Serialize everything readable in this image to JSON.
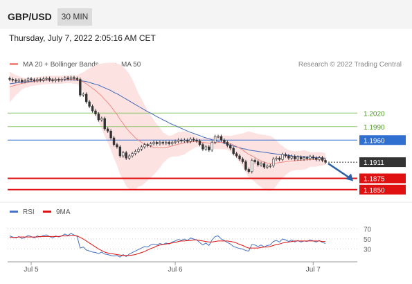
{
  "header": {
    "pair": "GBP/USD",
    "timeframe": "30 MIN"
  },
  "timestamp": "Thursday, July 7, 2022 2:05:16 AM CET",
  "colors": {
    "ma20": "#f08c84",
    "ma50": "#3f67b8",
    "band_fill": "#fde2e2",
    "support": "#e01010",
    "resistance": "#8cc56a",
    "pivot": "#2f6fd0",
    "last": "#333333",
    "rsi": "#4472c4",
    "rsi_ma": "#e01010",
    "candle": "#333333",
    "arrow": "#2b5fa5"
  },
  "chart_data": [
    {
      "type": "candlestick",
      "title": "GBP/USD",
      "legend": [
        "MA 20 + Bollinger Bands",
        "MA 50"
      ],
      "legend_placement": "top-left",
      "credit": "Research © 2022 Trading Central",
      "x_tick_labels": [
        "Jul 5",
        "Jul 6",
        "Jul 7"
      ],
      "ylim": [
        1.1825,
        1.2105
      ],
      "levels": [
        {
          "label": "1.2020",
          "value": 1.202,
          "kind": "resistance"
        },
        {
          "label": "1.1990",
          "value": 1.199,
          "kind": "resistance"
        },
        {
          "label": "1.1960",
          "value": 1.196,
          "kind": "pivot"
        },
        {
          "label": "1.1911",
          "value": 1.1911,
          "kind": "last"
        },
        {
          "label": "1.1875",
          "value": 1.1875,
          "kind": "support"
        },
        {
          "label": "1.1850",
          "value": 1.185,
          "kind": "support"
        }
      ],
      "close": [
        1.2095,
        1.2093,
        1.2091,
        1.2093,
        1.209,
        1.2092,
        1.2096,
        1.2094,
        1.2092,
        1.2095,
        1.2093,
        1.2096,
        1.2097,
        1.2094,
        1.2092,
        1.2095,
        1.2093,
        1.2095,
        1.2098,
        1.2096,
        1.2099,
        1.2097,
        1.2095,
        1.206,
        1.2062,
        1.2045,
        1.2035,
        1.2025,
        1.2018,
        1.2005,
        1.2008,
        1.1985,
        1.198,
        1.1965,
        1.195,
        1.1945,
        1.1925,
        1.1932,
        1.192,
        1.1925,
        1.193,
        1.1935,
        1.194,
        1.1945,
        1.195,
        1.1948,
        1.1952,
        1.1955,
        1.1952,
        1.1955,
        1.1953,
        1.1955,
        1.1952,
        1.1955,
        1.1957,
        1.196,
        1.1958,
        1.196,
        1.1957,
        1.1962,
        1.196,
        1.1958,
        1.195,
        1.194,
        1.1945,
        1.1938,
        1.1955,
        1.1968,
        1.1968,
        1.196,
        1.1955,
        1.1948,
        1.1942,
        1.193,
        1.1925,
        1.1918,
        1.1912,
        1.1895,
        1.189,
        1.1915,
        1.1912,
        1.1905,
        1.1908,
        1.19,
        1.1902,
        1.1903,
        1.1918,
        1.192,
        1.1917,
        1.1928,
        1.1925,
        1.192,
        1.1924,
        1.1918,
        1.1922,
        1.1918,
        1.1921,
        1.1919,
        1.1923,
        1.192,
        1.1917,
        1.1921,
        1.1915,
        1.1911
      ],
      "ma20": [
        1.2078,
        1.208,
        1.2082,
        1.2084,
        1.2086,
        1.2087,
        1.2088,
        1.2089,
        1.209,
        1.2091,
        1.2092,
        1.2093,
        1.2093,
        1.2094,
        1.2094,
        1.2094,
        1.2094,
        1.2094,
        1.2095,
        1.2095,
        1.2095,
        1.2094,
        1.2094,
        1.2092,
        1.2089,
        1.2085,
        1.208,
        1.2075,
        1.207,
        1.2064,
        1.2058,
        1.205,
        1.2043,
        1.2035,
        1.2026,
        1.2017,
        1.2006,
        1.1997,
        1.1987,
        1.1979,
        1.1972,
        1.1965,
        1.196,
        1.1955,
        1.1951,
        1.1948,
        1.1946,
        1.1944,
        1.1943,
        1.1943,
        1.1943,
        1.1944,
        1.1945,
        1.1947,
        1.1949,
        1.1951,
        1.1952,
        1.1954,
        1.1955,
        1.1956,
        1.1957,
        1.1957,
        1.1956,
        1.1955,
        1.1954,
        1.1953,
        1.1953,
        1.1954,
        1.1955,
        1.1955,
        1.1955,
        1.1954,
        1.1952,
        1.1949,
        1.1946,
        1.1942,
        1.1938,
        1.1933,
        1.1928,
        1.1925,
        1.1921,
        1.1917,
        1.1914,
        1.1911,
        1.1909,
        1.1908,
        1.1908,
        1.1909,
        1.191,
        1.1911,
        1.1912,
        1.1913,
        1.1914,
        1.1914,
        1.1915,
        1.1915,
        1.1916,
        1.1916,
        1.1917,
        1.1917,
        1.1917,
        1.1918,
        1.1918,
        1.1918
      ],
      "ma50": [
        1.2085,
        1.2086,
        1.2087,
        1.2088,
        1.2088,
        1.2089,
        1.209,
        1.209,
        1.2091,
        1.2091,
        1.2092,
        1.2092,
        1.2093,
        1.2093,
        1.2093,
        1.2094,
        1.2094,
        1.2094,
        1.2094,
        1.2094,
        1.2094,
        1.2093,
        1.2093,
        1.2092,
        1.2091,
        1.209,
        1.2088,
        1.2086,
        1.2084,
        1.2082,
        1.2079,
        1.2076,
        1.2073,
        1.207,
        1.2066,
        1.2063,
        1.2059,
        1.2055,
        1.2051,
        1.2047,
        1.2043,
        1.2039,
        1.2035,
        1.2031,
        1.2027,
        1.2023,
        1.202,
        1.2016,
        1.2012,
        1.2009,
        1.2005,
        1.2002,
        1.1998,
        1.1995,
        1.1992,
        1.1989,
        1.1986,
        1.1983,
        1.198,
        1.1977,
        1.1975,
        1.1972,
        1.197,
        1.1967,
        1.1965,
        1.1963,
        1.1961,
        1.1959,
        1.1957,
        1.1955,
        1.1953,
        1.1951,
        1.1949,
        1.1947,
        1.1945,
        1.1943,
        1.1941,
        1.194,
        1.1938,
        1.1937,
        1.1936,
        1.1935,
        1.1934,
        1.1933,
        1.1932,
        1.1931,
        1.193,
        1.1929,
        1.1928,
        1.1927,
        1.1927,
        1.1926,
        1.1925,
        1.1924,
        1.1924,
        1.1923,
        1.1923,
        1.1922,
        1.1922,
        1.1921,
        1.1921,
        1.1921,
        1.192,
        1.192
      ]
    },
    {
      "type": "line",
      "legend": [
        "RSI",
        "9MA"
      ],
      "legend_placement": "top-left",
      "ylim": [
        10,
        90
      ],
      "y_tick_labels": [
        "70",
        "50",
        "30"
      ],
      "series": [
        {
          "name": "RSI",
          "values": [
            56,
            54,
            52,
            55,
            51,
            53,
            57,
            55,
            52,
            56,
            54,
            57,
            58,
            55,
            52,
            56,
            54,
            56,
            60,
            57,
            61,
            58,
            55,
            32,
            34,
            28,
            26,
            24,
            23,
            21,
            24,
            20,
            19,
            17,
            16,
            17,
            14,
            19,
            15,
            20,
            23,
            26,
            29,
            32,
            35,
            34,
            38,
            40,
            38,
            41,
            39,
            42,
            40,
            44,
            46,
            49,
            47,
            50,
            47,
            52,
            50,
            48,
            43,
            38,
            42,
            37,
            48,
            55,
            56,
            50,
            47,
            43,
            40,
            35,
            33,
            31,
            30,
            27,
            26,
            39,
            38,
            35,
            38,
            34,
            37,
            38,
            45,
            47,
            44,
            50,
            48,
            45,
            48,
            44,
            47,
            44,
            46,
            45,
            48,
            46,
            44,
            47,
            43,
            41
          ]
        },
        {
          "name": "9MA",
          "values": [
            53,
            53,
            53,
            54,
            54,
            54,
            54,
            54,
            54,
            54,
            55,
            55,
            55,
            55,
            55,
            55,
            55,
            56,
            56,
            56,
            57,
            57,
            56,
            53,
            50,
            46,
            42,
            38,
            34,
            30,
            27,
            24,
            22,
            21,
            20,
            19,
            18,
            17,
            17,
            17,
            18,
            19,
            21,
            23,
            25,
            28,
            31,
            33,
            36,
            38,
            39,
            40,
            41,
            42,
            43,
            45,
            46,
            46,
            47,
            47,
            48,
            48,
            47,
            46,
            45,
            44,
            44,
            45,
            46,
            46,
            46,
            46,
            45,
            44,
            42,
            39,
            37,
            34,
            32,
            32,
            32,
            32,
            33,
            34,
            34,
            35,
            37,
            39,
            40,
            42,
            43,
            44,
            45,
            46,
            46,
            46,
            46,
            46,
            46,
            46,
            46,
            46,
            45,
            45
          ]
        }
      ]
    }
  ]
}
